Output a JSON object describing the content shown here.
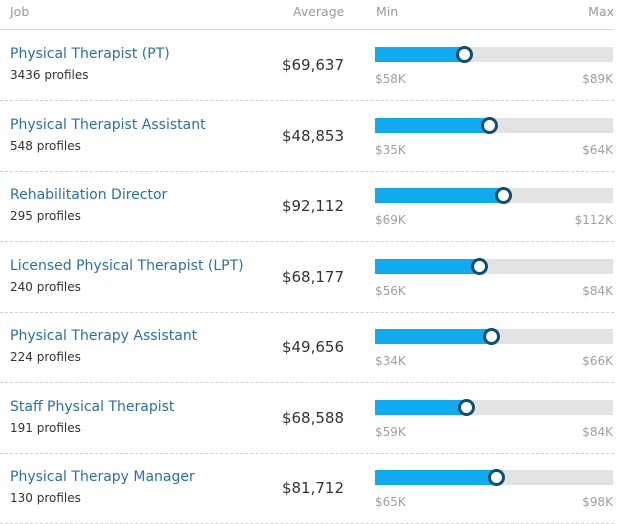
{
  "header": {
    "job": "Job",
    "average": "Average",
    "min": "Min",
    "max": "Max"
  },
  "colors": {
    "title": "#2a6fad",
    "fill": "#11aaee",
    "knob": "#0e4f6e",
    "track": "#e3e3e3"
  },
  "rows": [
    {
      "title": "Physical Therapist (PT)",
      "profiles": "3436 profiles",
      "average": "$69,637",
      "min": "$58K",
      "max": "$89K",
      "avg_value": 69637,
      "min_value": 58000,
      "max_value": 89000
    },
    {
      "title": "Physical Therapist Assistant",
      "profiles": "548 profiles",
      "average": "$48,853",
      "min": "$35K",
      "max": "$64K",
      "avg_value": 48853,
      "min_value": 35000,
      "max_value": 64000
    },
    {
      "title": "Rehabilitation Director",
      "profiles": "295 profiles",
      "average": "$92,112",
      "min": "$69K",
      "max": "$112K",
      "avg_value": 92112,
      "min_value": 69000,
      "max_value": 112000
    },
    {
      "title": "Licensed Physical Therapist (LPT)",
      "profiles": "240 profiles",
      "average": "$68,177",
      "min": "$56K",
      "max": "$84K",
      "avg_value": 68177,
      "min_value": 56000,
      "max_value": 84000
    },
    {
      "title": "Physical Therapy Assistant",
      "profiles": "224 profiles",
      "average": "$49,656",
      "min": "$34K",
      "max": "$66K",
      "avg_value": 49656,
      "min_value": 34000,
      "max_value": 66000
    },
    {
      "title": "Staff Physical Therapist",
      "profiles": "191 profiles",
      "average": "$68,588",
      "min": "$59K",
      "max": "$84K",
      "avg_value": 68588,
      "min_value": 59000,
      "max_value": 84000
    },
    {
      "title": "Physical Therapy Manager",
      "profiles": "130 profiles",
      "average": "$81,712",
      "min": "$65K",
      "max": "$98K",
      "avg_value": 81712,
      "min_value": 65000,
      "max_value": 98000
    }
  ]
}
